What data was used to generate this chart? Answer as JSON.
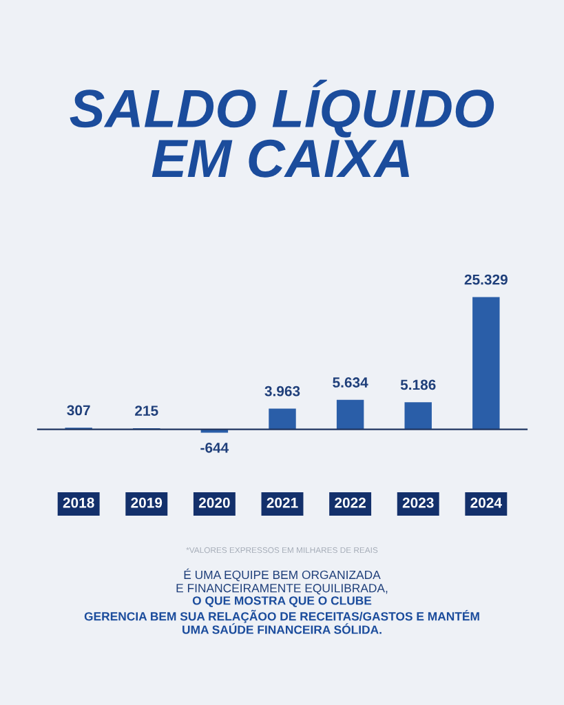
{
  "chart_data": {
    "type": "bar",
    "title": "SALDO LÍQUIDO\nEM CAIXA",
    "categories": [
      "2018",
      "2019",
      "2020",
      "2021",
      "2022",
      "2023",
      "2024"
    ],
    "values": [
      307,
      215,
      -644,
      3963,
      5634,
      5186,
      25329
    ],
    "value_labels": [
      "307",
      "215",
      "-644",
      "3.963",
      "5.634",
      "5.186",
      "25.329"
    ],
    "color": "#2a5ea8",
    "annotations": [
      "*VALORES EXPRESSOS EM MILHARES DE REAIS",
      "É UMA EQUIPE BEM ORGANIZADA\nE FINANCEIRAMENTE EQUILIBRADA,",
      "O QUE MOSTRA QUE O CLUBE\nGERENCIA BEM SUA RELAÇÃOO DE RECEITAS/GASTOS E MANTÉM\nUMA SAÚDE FINANCEIRA SÓLIDA."
    ],
    "legend": false
  }
}
